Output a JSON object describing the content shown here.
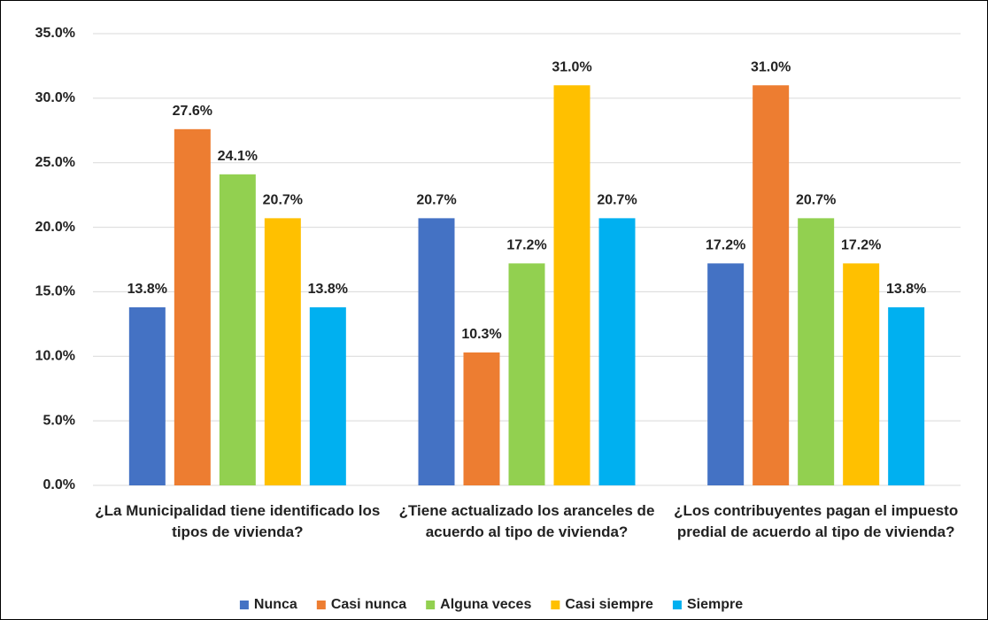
{
  "chart_data": {
    "type": "bar",
    "categories": [
      "¿La Municipalidad tiene identificado los tipos de vivienda?",
      "¿Tiene actualizado los aranceles de acuerdo al tipo de vivienda?",
      "¿Los contribuyentes pagan el impuesto predial de acuerdo al tipo de vivienda?"
    ],
    "series": [
      {
        "name": "Nunca",
        "color": "#4472c4",
        "values": [
          13.8,
          20.7,
          17.2
        ],
        "value_labels": [
          "13.8%",
          "20.7%",
          "17.2%"
        ]
      },
      {
        "name": "Casi nunca",
        "color": "#ed7d31",
        "values": [
          27.6,
          10.3,
          31.0
        ],
        "value_labels": [
          "27.6%",
          "10.3%",
          "31.0%"
        ]
      },
      {
        "name": "Alguna veces",
        "color": "#92d050",
        "values": [
          24.1,
          17.2,
          20.7
        ],
        "value_labels": [
          "24.1%",
          "17.2%",
          "20.7%"
        ]
      },
      {
        "name": "Casi siempre",
        "color": "#ffc000",
        "values": [
          20.7,
          31.0,
          17.2
        ],
        "value_labels": [
          "20.7%",
          "31.0%",
          "17.2%"
        ]
      },
      {
        "name": "Siempre",
        "color": "#00b0f0",
        "values": [
          13.8,
          20.7,
          13.8
        ],
        "value_labels": [
          "13.8%",
          "20.7%",
          "13.8%"
        ]
      }
    ],
    "ylim": [
      0,
      35
    ],
    "yticks": [
      {
        "value": 0,
        "label": "0.0%"
      },
      {
        "value": 5,
        "label": "5.0%"
      },
      {
        "value": 10,
        "label": "10.0%"
      },
      {
        "value": 15,
        "label": "15.0%"
      },
      {
        "value": 20,
        "label": "20.0%"
      },
      {
        "value": 25,
        "label": "25.0%"
      },
      {
        "value": 30,
        "label": "30.0%"
      },
      {
        "value": 35,
        "label": "35.0%"
      }
    ],
    "grid": true,
    "legend": "bottom"
  }
}
